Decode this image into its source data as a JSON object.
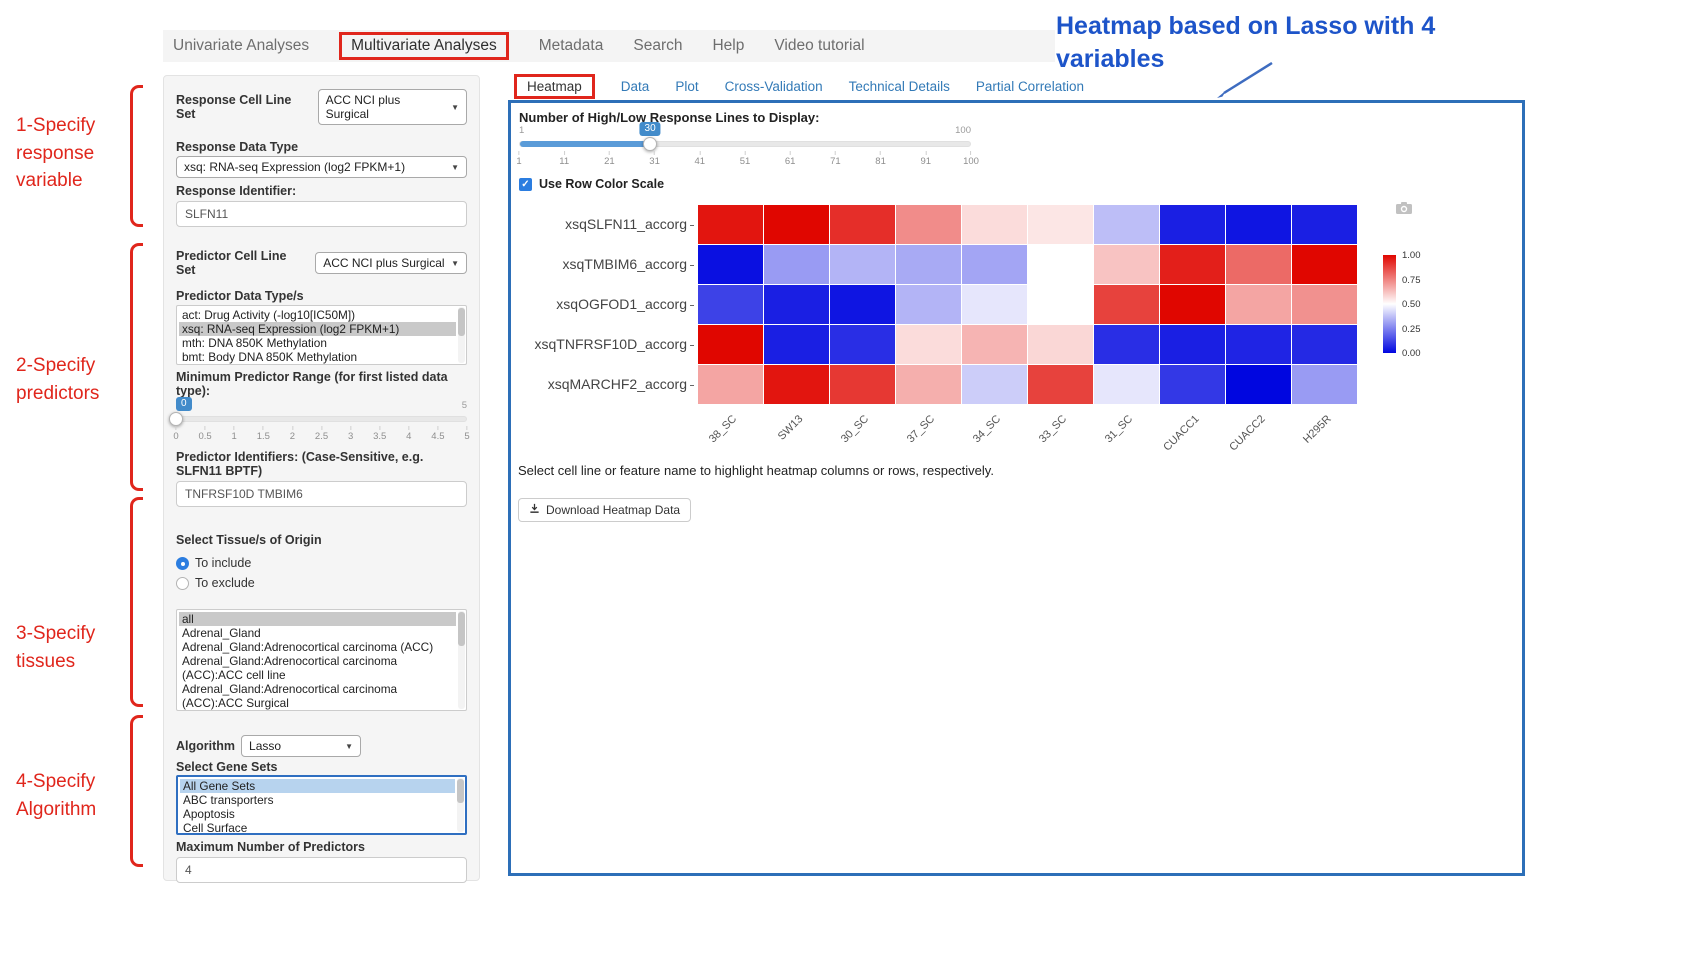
{
  "ui_colors": {
    "annotation_red": "#e0261c",
    "annotation_blue": "#1d54c9",
    "panel_border_blue": "#2d6fb8",
    "link_blue": "#337ab7",
    "slider_blue": "#428bca"
  },
  "annotations": {
    "steps": [
      {
        "label": "1-Specify\nresponse\nvariable"
      },
      {
        "label": "2-Specify\npredictors"
      },
      {
        "label": "3-Specify\ntissues"
      },
      {
        "label": "4-Specify\nAlgorithm"
      }
    ],
    "heatmap_note": "Heatmap based on Lasso with 4 variables"
  },
  "nav": {
    "items": [
      {
        "label": "Univariate Analyses",
        "emphasized": false
      },
      {
        "label": "Multivariate Analyses",
        "emphasized": true
      },
      {
        "label": "Metadata",
        "emphasized": false
      },
      {
        "label": "Search",
        "emphasized": false
      },
      {
        "label": "Help",
        "emphasized": false
      },
      {
        "label": "Video tutorial",
        "emphasized": false
      }
    ]
  },
  "sidebar": {
    "response_cell_line_set_label": "Response Cell Line Set",
    "response_cell_line_set_value": "ACC NCI plus Surgical",
    "response_data_type_label": "Response Data Type",
    "response_data_type_value": "xsq: RNA-seq Expression (log2 FPKM+1)",
    "response_identifier_label": "Response Identifier:",
    "response_identifier_value": "SLFN11",
    "predictor_cell_line_set_label": "Predictor Cell Line Set",
    "predictor_cell_line_set_value": "ACC NCI plus Surgical",
    "predictor_data_types_label": "Predictor Data Type/s",
    "predictor_data_types_options": [
      {
        "label": "act: Drug Activity (-log10[IC50M])",
        "selected": false
      },
      {
        "label": "xsq: RNA-seq Expression (log2 FPKM+1)",
        "selected": true
      },
      {
        "label": "mth: DNA 850K Methylation",
        "selected": false
      },
      {
        "label": "bmt: Body DNA 850K Methylation",
        "selected": false
      }
    ],
    "min_predictor_range_label": "Minimum Predictor Range (for first listed data type):",
    "min_predictor_range": {
      "value": "0",
      "min": "0",
      "max": "5",
      "percent": 0,
      "ticks": [
        "0",
        "0.5",
        "1",
        "1.5",
        "2",
        "2.5",
        "3",
        "3.5",
        "4",
        "4.5",
        "5"
      ]
    },
    "predictor_identifiers_label": "Predictor Identifiers: (Case-Sensitive, e.g. SLFN11 BPTF)",
    "predictor_identifiers_value": "TNFRSF10D TMBIM6",
    "tissue_label": "Select Tissue/s of Origin",
    "tissue_radios": [
      {
        "label": "To include",
        "selected": true
      },
      {
        "label": "To exclude",
        "selected": false
      }
    ],
    "tissue_options": [
      {
        "label": "all",
        "selected": true
      },
      {
        "label": "Adrenal_Gland",
        "selected": false
      },
      {
        "label": "Adrenal_Gland:Adrenocortical carcinoma (ACC)",
        "selected": false
      },
      {
        "label": "Adrenal_Gland:Adrenocortical carcinoma (ACC):ACC cell line",
        "selected": false
      },
      {
        "label": "Adrenal_Gland:Adrenocortical carcinoma (ACC):ACC Surgical",
        "selected": false
      }
    ],
    "algorithm_label": "Algorithm",
    "algorithm_value": "Lasso",
    "gene_sets_label": "Select Gene Sets",
    "gene_sets_options": [
      {
        "label": "All Gene Sets",
        "selected": true
      },
      {
        "label": "ABC transporters",
        "selected": false
      },
      {
        "label": "Apoptosis",
        "selected": false
      },
      {
        "label": "Cell Surface",
        "selected": false
      }
    ],
    "max_predictors_label": "Maximum Number of Predictors",
    "max_predictors_value": "4"
  },
  "main": {
    "tabs": [
      {
        "label": "Heatmap",
        "active": true
      },
      {
        "label": "Data",
        "active": false
      },
      {
        "label": "Plot",
        "active": false
      },
      {
        "label": "Cross-Validation",
        "active": false
      },
      {
        "label": "Technical Details",
        "active": false
      },
      {
        "label": "Partial Correlation",
        "active": false
      }
    ],
    "lines_slider_label": "Number of High/Low Response Lines to Display:",
    "lines_slider": {
      "value": "30",
      "min": "1",
      "max": "100",
      "percent": 29,
      "ticks": [
        "1",
        "11",
        "21",
        "31",
        "41",
        "51",
        "61",
        "71",
        "81",
        "91",
        "100"
      ]
    },
    "row_color_scale_label": "Use Row Color Scale",
    "row_color_scale_checked": true,
    "hint": "Select cell line or feature name to highlight heatmap columns or rows, respectively.",
    "download_button_label": "Download Heatmap Data"
  },
  "chart_data": {
    "type": "heatmap",
    "rows": [
      "xsqSLFN11_accorg",
      "xsqTMBIM6_accorg",
      "xsqOGFOD1_accorg",
      "xsqTNFRSF10D_accorg",
      "xsqMARCHF2_accorg"
    ],
    "columns": [
      "38_SC",
      "SW13",
      "30_SC",
      "37_SC",
      "34_SC",
      "33_SC",
      "31_SC",
      "CUACC1",
      "CUACC2",
      "H295R"
    ],
    "values": [
      [
        0.97,
        1.0,
        0.92,
        0.73,
        0.57,
        0.55,
        0.37,
        0.05,
        0.03,
        0.05
      ],
      [
        0.02,
        0.3,
        0.35,
        0.33,
        0.32,
        0.5,
        0.62,
        0.95,
        0.8,
        1.0
      ],
      [
        0.12,
        0.05,
        0.03,
        0.35,
        0.45,
        0.5,
        0.88,
        1.0,
        0.68,
        0.72
      ],
      [
        1.0,
        0.05,
        0.08,
        0.57,
        0.65,
        0.58,
        0.08,
        0.05,
        0.06,
        0.07
      ],
      [
        0.68,
        0.97,
        0.9,
        0.66,
        0.4,
        0.88,
        0.45,
        0.1,
        0.0,
        0.3
      ]
    ],
    "vmin": 0,
    "vmax": 1,
    "colorbar_ticks": [
      "1.00",
      "0.75",
      "0.50",
      "0.25",
      "0.00"
    ],
    "color_high": "#e00600",
    "color_mid": "#ffffff",
    "color_low": "#0006e0",
    "legend_position": "right",
    "grid": false
  }
}
